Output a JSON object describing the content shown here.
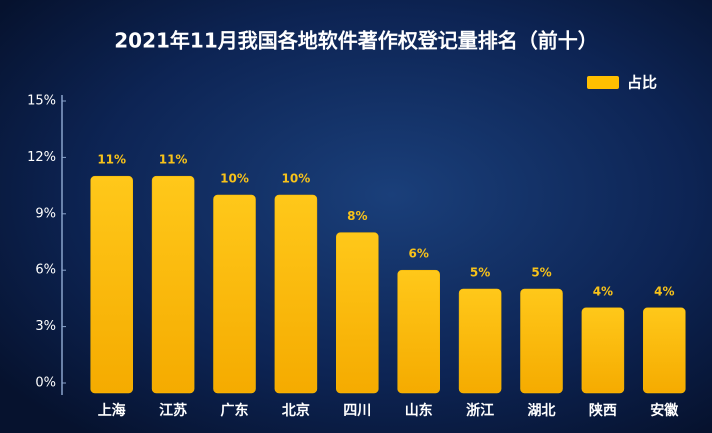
{
  "chart_data": {
    "type": "bar",
    "title": "2021年11月我国各地软件著作权登记量排名（前十）",
    "categories": [
      "上海",
      "江苏",
      "广东",
      "北京",
      "四川",
      "山东",
      "浙江",
      "湖北",
      "陕西",
      "安徽"
    ],
    "series": [
      {
        "name": "占比",
        "color": "#ffbf00",
        "values": [
          11,
          11,
          10,
          10,
          8,
          6,
          5,
          5,
          4,
          4
        ],
        "value_labels": [
          "11%",
          "11%",
          "10%",
          "10%",
          "8%",
          "6%",
          "5%",
          "5%",
          "4%",
          "4%"
        ]
      }
    ],
    "ylim": [
      0,
      15
    ],
    "yticks": [
      {
        "value": 0,
        "label": "0%"
      },
      {
        "value": 3,
        "label": "3%"
      },
      {
        "value": 6,
        "label": "6%"
      },
      {
        "value": 9,
        "label": "9%"
      },
      {
        "value": 12,
        "label": "12%"
      },
      {
        "value": 15,
        "label": "15%"
      }
    ],
    "legend": "top-right"
  }
}
